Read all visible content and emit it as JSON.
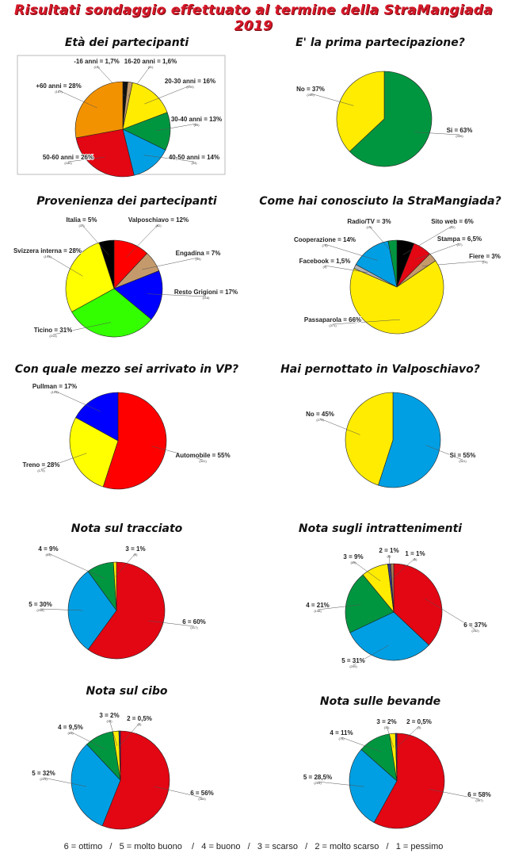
{
  "title": "Risultati sondaggio effettuato al termine della StraMangiada 2019",
  "legend": "6 = ottimo   /   5 = molto buono    /   4 = buono   /   3 = scarso   /   2 = molto scarso   /   1 = pessimo",
  "chart_data": [
    {
      "type": "pie",
      "title": "Età dei partecipanti",
      "slices": [
        {
          "label": "-16 anni = 1,7%",
          "value": 1.7,
          "count": "(12)",
          "color": "#111111"
        },
        {
          "label": "16-20 anni = 1,6%",
          "value": 1.6,
          "count": "(11)",
          "color": "#c49a6c"
        },
        {
          "label": "20-30 anni = 16%",
          "value": 16,
          "count": "(109)",
          "color": "#ffec00"
        },
        {
          "label": "30-40 anni = 13%",
          "value": 13,
          "count": "(89)",
          "color": "#009640"
        },
        {
          "label": "40-50 anni = 14%",
          "value": 14,
          "count": "(93)",
          "color": "#009fe3"
        },
        {
          "label": "50-60 anni = 26%",
          "value": 26,
          "count": "(180)",
          "color": "#e30613"
        },
        {
          "label": "+60 anni = 28%",
          "value": 28,
          "count": "(187)",
          "color": "#f39200"
        }
      ]
    },
    {
      "type": "pie",
      "title": "E' la prima partecipazione?",
      "slices": [
        {
          "label": "Si = 63%",
          "value": 63,
          "count": "(435)",
          "color": "#009640"
        },
        {
          "label": "No = 37%",
          "value": 37,
          "count": "(260)",
          "color": "#ffec00"
        }
      ]
    },
    {
      "type": "pie",
      "title": "Provenienza dei partecipanti",
      "slices": [
        {
          "label": "Valposchiavo = 12%",
          "value": 12,
          "count": "(82)",
          "color": "#ff0000"
        },
        {
          "label": "Engadina = 7%",
          "value": 7,
          "count": "(49)",
          "color": "#c49a6c"
        },
        {
          "label": "Resto Grigioni = 17%",
          "value": 17,
          "count": "(118)",
          "color": "#0000ff"
        },
        {
          "label": "Ticino = 31%",
          "value": 31,
          "count": "(214)",
          "color": "#33ff00"
        },
        {
          "label": "Svizzera interna = 28%",
          "value": 28,
          "count": "(194)",
          "color": "#ffff00"
        },
        {
          "label": "Italia = 5%",
          "value": 5,
          "count": "(37)",
          "color": "#000000"
        }
      ]
    },
    {
      "type": "pie",
      "title": "Come hai conosciuto la StraMangiada?",
      "slices": [
        {
          "label": "Sito web = 6%",
          "value": 6,
          "count": "(32)",
          "color": "#000000"
        },
        {
          "label": "Stampa = 6,5%",
          "value": 6.5,
          "count": "(37)",
          "color": "#e30613"
        },
        {
          "label": "Fiere = 3%",
          "value": 3,
          "count": "(19)",
          "color": "#c49a6c"
        },
        {
          "label": "Passaparola = 66%",
          "value": 66,
          "count": "(371)",
          "color": "#ffec00"
        },
        {
          "label": "Facebook = 1,5%",
          "value": 1.5,
          "count": "(9)",
          "color": "#b2b2b2"
        },
        {
          "label": "Cooperazione = 14%",
          "value": 14,
          "count": "(78)",
          "color": "#009fe3"
        },
        {
          "label": "Radio/TV = 3%",
          "value": 3,
          "count": "(19)",
          "color": "#009640"
        }
      ]
    },
    {
      "type": "pie",
      "title": "Con quale mezzo sei arrivato in VP?",
      "slices": [
        {
          "label": "Automobile = 55%",
          "value": 55,
          "count": "(341)",
          "color": "#ff0000"
        },
        {
          "label": "Treno = 28%",
          "value": 28,
          "count": "(170)",
          "color": "#ffff00"
        },
        {
          "label": "Pullman = 17%",
          "value": 17,
          "count": "(104)",
          "color": "#0000ff"
        }
      ]
    },
    {
      "type": "pie",
      "title": "Hai pernottato in Valposchiavo?",
      "slices": [
        {
          "label": "Si = 55%",
          "value": 55,
          "count": "(341)",
          "color": "#009fe3"
        },
        {
          "label": "No = 45%",
          "value": 45,
          "count": "(279)",
          "color": "#ffec00"
        }
      ]
    },
    {
      "type": "pie",
      "title": "Nota sul tracciato",
      "slices": [
        {
          "label": "6 = 60%",
          "value": 60,
          "count": "(417)",
          "color": "#e30613"
        },
        {
          "label": "5 = 30%",
          "value": 30,
          "count": "(208)",
          "color": "#009fe3"
        },
        {
          "label": "4 = 9%",
          "value": 9,
          "count": "(64)",
          "color": "#009640"
        },
        {
          "label": "3 = 1%",
          "value": 1,
          "count": "(9)",
          "color": "#ffec00"
        }
      ]
    },
    {
      "type": "pie",
      "title": "Nota sugli intrattenimenti",
      "slices": [
        {
          "label": "6 = 37%",
          "value": 37,
          "count": "(252)",
          "color": "#e30613"
        },
        {
          "label": "5 = 31%",
          "value": 31,
          "count": "(209)",
          "color": "#009fe3"
        },
        {
          "label": "4 = 21%",
          "value": 21,
          "count": "(148)",
          "color": "#009640"
        },
        {
          "label": "3 = 9%",
          "value": 9,
          "count": "(59)",
          "color": "#ffec00"
        },
        {
          "label": "2 = 1%",
          "value": 1,
          "count": "(8)",
          "color": "#2e3192"
        },
        {
          "label": "1 = 1%",
          "value": 1,
          "count": "(6)",
          "color": "#a67c52"
        }
      ]
    },
    {
      "type": "pie",
      "title": "Nota sul cibo",
      "slices": [
        {
          "label": "6 = 56%",
          "value": 56,
          "count": "(384)",
          "color": "#e30613"
        },
        {
          "label": "5 = 32%",
          "value": 32,
          "count": "(223)",
          "color": "#009fe3"
        },
        {
          "label": "4 = 9,5%",
          "value": 9.5,
          "count": "(64)",
          "color": "#009640"
        },
        {
          "label": "3 = 2%",
          "value": 2,
          "count": "(13)",
          "color": "#ffec00"
        },
        {
          "label": "2 = 0,5%",
          "value": 0.5,
          "count": "(4)",
          "color": "#2e3192"
        }
      ]
    },
    {
      "type": "pie",
      "title": "Nota sulle bevande",
      "slices": [
        {
          "label": "6 = 58%",
          "value": 58,
          "count": "(397)",
          "color": "#e30613"
        },
        {
          "label": "5 = 28,5%",
          "value": 28.5,
          "count": "(204)",
          "color": "#009fe3"
        },
        {
          "label": "4 = 11%",
          "value": 11,
          "count": "(76)",
          "color": "#009640"
        },
        {
          "label": "3 = 2%",
          "value": 2,
          "count": "(11)",
          "color": "#ffec00"
        },
        {
          "label": "2 = 0,5%",
          "value": 0.5,
          "count": "(3)",
          "color": "#2e3192"
        }
      ]
    }
  ]
}
